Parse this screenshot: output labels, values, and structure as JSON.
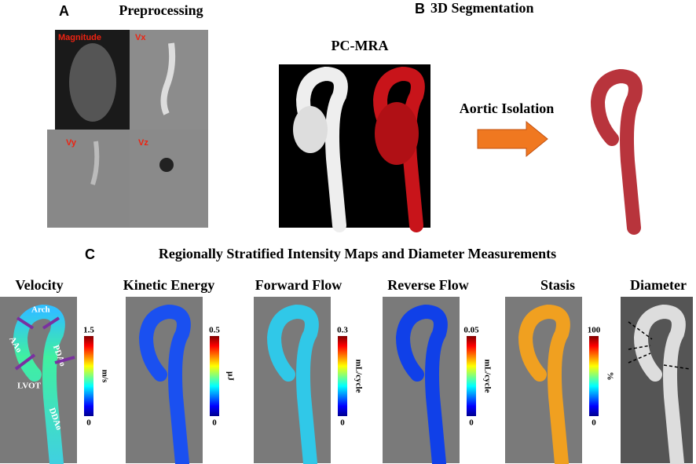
{
  "panel_a": {
    "label": "A",
    "title": "Preprocessing",
    "images": [
      "Magnitude",
      "Vx",
      "Vy",
      "Vz"
    ]
  },
  "panel_b": {
    "label": "B",
    "title": "3D Segmentation",
    "image_title": "PC-MRA",
    "arrow_label": "Aortic Isolation"
  },
  "panel_c": {
    "label": "C",
    "title": "Regionally Stratified Intensity Maps and Diameter Measurements",
    "maps": [
      {
        "title": "Velocity",
        "max": 1.5,
        "min": 0,
        "unit": "m/s"
      },
      {
        "title": "Kinetic Energy",
        "max": 0.5,
        "min": 0,
        "unit": "μJ"
      },
      {
        "title": "Forward  Flow",
        "max": 0.3,
        "min": 0,
        "unit": "mL/cycle"
      },
      {
        "title": "Reverse Flow",
        "max": 0.05,
        "min": 0,
        "unit": "mL/cycle"
      },
      {
        "title": "Stasis",
        "max": 100,
        "min": 0,
        "unit": "%"
      },
      {
        "title": "Diameter"
      }
    ],
    "annotations": [
      "Arch",
      "AAo",
      "PDAo",
      "LVOT",
      "DDAo"
    ]
  }
}
